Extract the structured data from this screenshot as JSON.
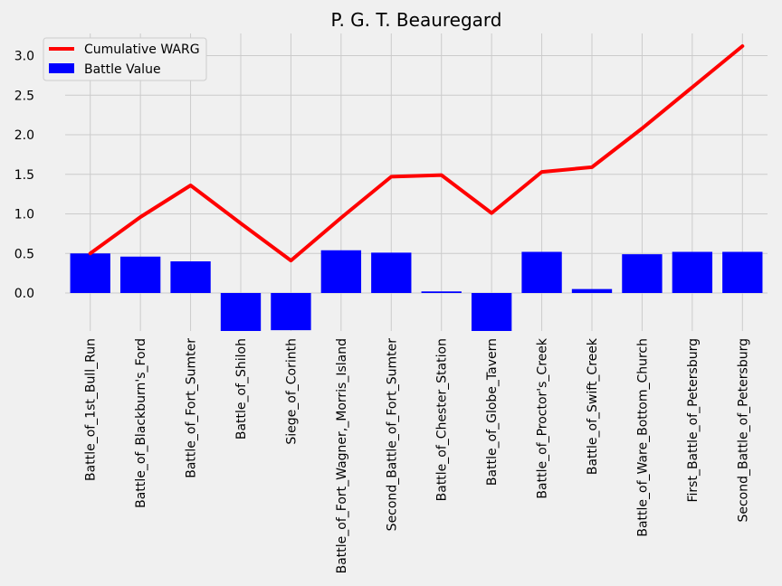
{
  "chart_data": {
    "type": "bar",
    "title": "P. G. T. Beauregard",
    "xlabel": "",
    "ylabel": "",
    "ylim": [
      -0.48,
      3.28
    ],
    "yticks": [
      0.0,
      0.5,
      1.0,
      1.5,
      2.0,
      2.5,
      3.0
    ],
    "ytick_labels": [
      "0.0",
      "0.5",
      "1.0",
      "1.5",
      "2.0",
      "2.5",
      "3.0"
    ],
    "grid": true,
    "legend_position": "top-left",
    "categories": [
      "Battle_of_1st_Bull_Run",
      "Battle_of_Blackburn's_Ford",
      "Battle_of_Fort_Sumter",
      "Battle_of_Shiloh",
      "Siege_of_Corinth",
      "Battle_of_Fort_Wagner,_Morris_Island",
      "Second_Battle_of_Fort_Sumter",
      "Battle_of_Chester_Station",
      "Battle_of_Globe_Tavern",
      "Battle_of_Proctor's_Creek",
      "Battle_of_Swift_Creek",
      "Battle_of_Ware_Bottom_Church",
      "First_Battle_of_Petersburg",
      "Second_Battle_of_Petersburg"
    ],
    "series": [
      {
        "name": "Cumulative WARG",
        "kind": "line",
        "color": "#ff0000",
        "values": [
          0.5,
          0.96,
          1.36,
          0.88,
          0.41,
          0.95,
          1.47,
          1.49,
          1.01,
          1.53,
          1.59,
          2.08,
          2.6,
          3.12
        ]
      },
      {
        "name": "Battle Value",
        "kind": "bar",
        "color": "#0000ff",
        "values": [
          0.5,
          0.46,
          0.4,
          -0.48,
          -0.47,
          0.54,
          0.51,
          0.02,
          -0.48,
          0.52,
          0.05,
          0.49,
          0.52,
          0.52
        ]
      }
    ]
  }
}
